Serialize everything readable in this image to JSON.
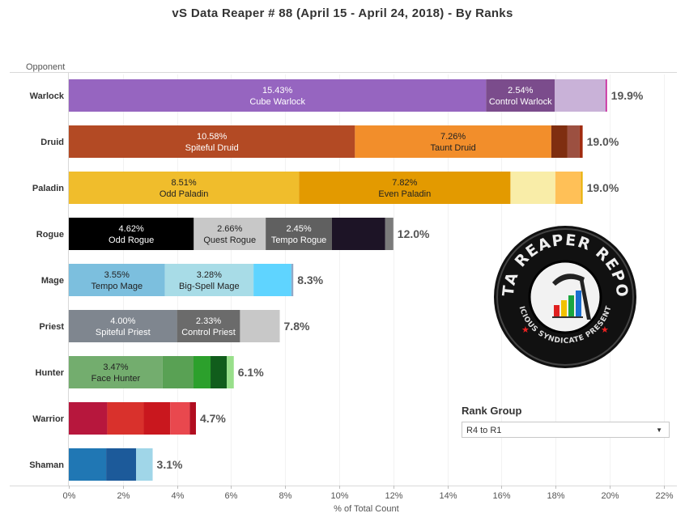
{
  "title": "vS Data Reaper #  88 (April 15 - April 24, 2018) - By Ranks",
  "rank_group": {
    "label": "Rank Group",
    "selected": "R4 to R1"
  },
  "logo": {
    "top_text": "DATA REAPER REPORT",
    "bottom_text": "VICIOUS SYNDICATE PRESENTS"
  },
  "chart_data": {
    "type": "bar",
    "stacked": true,
    "orientation": "horizontal",
    "title": "vS Data Reaper #  88 (April 15 - April 24, 2018) - By Ranks",
    "ylabel": "Opponent",
    "xlabel": "% of Total Count",
    "xlim": [
      0,
      22
    ],
    "xticks": [
      "0%",
      "2%",
      "4%",
      "6%",
      "8%",
      "10%",
      "12%",
      "14%",
      "16%",
      "18%",
      "20%",
      "22%"
    ],
    "categories": [
      "Warlock",
      "Druid",
      "Paladin",
      "Rogue",
      "Mage",
      "Priest",
      "Hunter",
      "Warrior",
      "Shaman"
    ],
    "bars": [
      {
        "class": "Warlock",
        "total": "19.9%",
        "segments": [
          {
            "value": 15.43,
            "pct": "15.43%",
            "label": "Cube Warlock",
            "color": "#9665c0"
          },
          {
            "value": 2.54,
            "pct": "2.54%",
            "label": "Control Warlock",
            "color": "#7b4c8c"
          },
          {
            "value": 1.88,
            "color": "#c9b2d8"
          },
          {
            "value": 0.05,
            "color": "#c6229a"
          }
        ]
      },
      {
        "class": "Druid",
        "total": "19.0%",
        "segments": [
          {
            "value": 10.58,
            "pct": "10.58%",
            "label": "Spiteful Druid",
            "color": "#b34a24"
          },
          {
            "value": 7.26,
            "pct": "7.26%",
            "label": "Taunt Druid",
            "color": "#f28e2b"
          },
          {
            "value": 0.6,
            "color": "#7f2e10"
          },
          {
            "value": 0.45,
            "color": "#9c5041"
          },
          {
            "value": 0.11,
            "color": "#a02a0f"
          }
        ]
      },
      {
        "class": "Paladin",
        "total": "19.0%",
        "segments": [
          {
            "value": 8.51,
            "pct": "8.51%",
            "label": "Odd Paladin",
            "color": "#f0bd2c"
          },
          {
            "value": 7.82,
            "pct": "7.82%",
            "label": "Even Paladin",
            "color": "#e39a00"
          },
          {
            "value": 1.66,
            "color": "#f9eda8"
          },
          {
            "value": 0.95,
            "color": "#ffc057"
          },
          {
            "value": 0.06,
            "color": "#e7b000"
          }
        ]
      },
      {
        "class": "Rogue",
        "total": "12.0%",
        "segments": [
          {
            "value": 4.62,
            "pct": "4.62%",
            "label": "Odd Rogue",
            "color": "#000000"
          },
          {
            "value": 2.66,
            "pct": "2.66%",
            "label": "Quest Rogue",
            "color": "#c8c8c8"
          },
          {
            "value": 2.45,
            "pct": "2.45%",
            "label": "Tempo Rogue",
            "color": "#606060"
          },
          {
            "value": 1.97,
            "color": "#1d1426"
          },
          {
            "value": 0.3,
            "color": "#7b7b7b"
          }
        ]
      },
      {
        "class": "Mage",
        "total": "8.3%",
        "segments": [
          {
            "value": 3.55,
            "pct": "3.55%",
            "label": "Tempo Mage",
            "color": "#7cbfde"
          },
          {
            "value": 3.28,
            "pct": "3.28%",
            "label": "Big-Spell Mage",
            "color": "#a8dce7"
          },
          {
            "value": 1.4,
            "color": "#5fd4ff"
          },
          {
            "value": 0.07,
            "color": "#92a8c6"
          }
        ]
      },
      {
        "class": "Priest",
        "total": "7.8%",
        "segments": [
          {
            "value": 4.0,
            "pct": "4.00%",
            "label": "Spiteful Priest",
            "color": "#7f868f"
          },
          {
            "value": 2.33,
            "pct": "2.33%",
            "label": "Control Priest",
            "color": "#6b6b6b"
          },
          {
            "value": 1.47,
            "color": "#c8c8c8"
          }
        ]
      },
      {
        "class": "Hunter",
        "total": "6.1%",
        "segments": [
          {
            "value": 3.47,
            "pct": "3.47%",
            "label": "Face Hunter",
            "color": "#73ad6e"
          },
          {
            "value": 1.14,
            "color": "#59a154"
          },
          {
            "value": 0.63,
            "color": "#2ca02c"
          },
          {
            "value": 0.6,
            "color": "#115d1c"
          },
          {
            "value": 0.26,
            "color": "#98df8a"
          }
        ]
      },
      {
        "class": "Warrior",
        "total": "4.7%",
        "segments": [
          {
            "value": 1.42,
            "color": "#b7173d"
          },
          {
            "value": 1.35,
            "color": "#d9312c"
          },
          {
            "value": 0.98,
            "color": "#c9171e"
          },
          {
            "value": 0.72,
            "color": "#e9484e"
          },
          {
            "value": 0.23,
            "color": "#b10d20"
          }
        ]
      },
      {
        "class": "Shaman",
        "total": "3.1%",
        "segments": [
          {
            "value": 1.38,
            "color": "#2077b4"
          },
          {
            "value": 1.11,
            "color": "#1c5a9a"
          },
          {
            "value": 0.61,
            "color": "#a0d6e8"
          }
        ]
      }
    ]
  }
}
